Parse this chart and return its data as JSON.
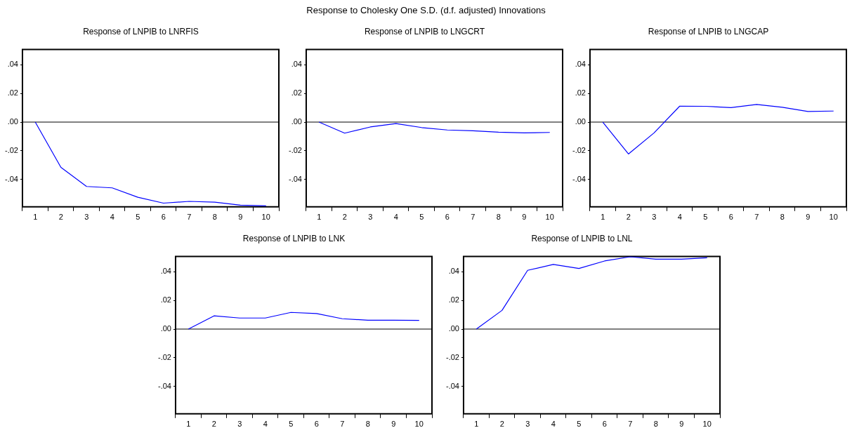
{
  "chart_data": [
    {
      "type": "line",
      "title": "Response of LNPIB to LNRFIS",
      "categories": [
        "1",
        "2",
        "3",
        "4",
        "5",
        "6",
        "7",
        "8",
        "9",
        "10"
      ],
      "values": [
        0,
        -0.0315,
        -0.0448,
        -0.0458,
        -0.0523,
        -0.0564,
        -0.0552,
        -0.0557,
        -0.0578,
        -0.0583
      ],
      "color": "#0000ff",
      "marker": "none",
      "ylim": [
        -0.059,
        0.0506
      ],
      "yticks": [
        {
          "value": -0.04,
          "label": "-.04"
        },
        {
          "value": -0.02,
          "label": "-.02"
        },
        {
          "value": 0,
          "label": ".00"
        },
        {
          "value": 0.02,
          "label": ".02"
        },
        {
          "value": 0.04,
          "label": ".04"
        }
      ],
      "ref_lines": [
        {
          "axis": "y",
          "value": 0,
          "color": "#000000"
        }
      ],
      "grid": false
    },
    {
      "type": "line",
      "title": "Response of LNPIB to LNGCRT",
      "subtitle": "Response to Cholesky One S.D. (d.f. adjusted) Innovations",
      "categories": [
        "1",
        "2",
        "3",
        "4",
        "5",
        "6",
        "7",
        "8",
        "9",
        "10"
      ],
      "values": [
        0,
        -0.0077,
        -0.0034,
        -0.001,
        -0.0038,
        -0.0055,
        -0.006,
        -0.007,
        -0.0075,
        -0.0072
      ],
      "color": "#0000ff",
      "marker": "none",
      "ylim": [
        -0.059,
        0.0506
      ],
      "yticks": [
        {
          "value": -0.04,
          "label": "-.04"
        },
        {
          "value": -0.02,
          "label": "-.02"
        },
        {
          "value": 0,
          "label": ".00"
        },
        {
          "value": 0.02,
          "label": ".02"
        },
        {
          "value": 0.04,
          "label": ".04"
        }
      ],
      "ref_lines": [
        {
          "axis": "y",
          "value": 0,
          "color": "#000000"
        }
      ],
      "grid": false
    },
    {
      "type": "line",
      "title": "Response of LNPIB to LNGCAP",
      "categories": [
        "1",
        "2",
        "3",
        "4",
        "5",
        "6",
        "7",
        "8",
        "9",
        "10"
      ],
      "values": [
        0,
        -0.0222,
        -0.0075,
        0.0111,
        0.011,
        0.0101,
        0.0123,
        0.0103,
        0.0074,
        0.0077
      ],
      "color": "#0000ff",
      "marker": "none",
      "ylim": [
        -0.059,
        0.0506
      ],
      "yticks": [
        {
          "value": -0.04,
          "label": "-.04"
        },
        {
          "value": -0.02,
          "label": "-.02"
        },
        {
          "value": 0,
          "label": ".00"
        },
        {
          "value": 0.02,
          "label": ".02"
        },
        {
          "value": 0.04,
          "label": ".04"
        }
      ],
      "ref_lines": [
        {
          "axis": "y",
          "value": 0,
          "color": "#000000"
        }
      ],
      "grid": false
    },
    {
      "type": "line",
      "title": "Response of LNPIB to LNK",
      "categories": [
        "1",
        "2",
        "3",
        "4",
        "5",
        "6",
        "7",
        "8",
        "9",
        "10"
      ],
      "values": [
        0,
        0.0092,
        0.0077,
        0.0077,
        0.0116,
        0.0108,
        0.0072,
        0.0062,
        0.0062,
        0.006
      ],
      "color": "#0000ff",
      "marker": "none",
      "ylim": [
        -0.059,
        0.0506
      ],
      "yticks": [
        {
          "value": -0.04,
          "label": "-.04"
        },
        {
          "value": -0.02,
          "label": "-.02"
        },
        {
          "value": 0,
          "label": ".00"
        },
        {
          "value": 0.02,
          "label": ".02"
        },
        {
          "value": 0.04,
          "label": ".04"
        }
      ],
      "ref_lines": [
        {
          "axis": "y",
          "value": 0,
          "color": "#000000"
        }
      ],
      "grid": false
    },
    {
      "type": "line",
      "title": "Response of LNPIB to LNL",
      "categories": [
        "1",
        "2",
        "3",
        "4",
        "5",
        "6",
        "7",
        "8",
        "9",
        "10"
      ],
      "values": [
        0,
        0.013,
        0.0409,
        0.045,
        0.0422,
        0.0474,
        0.0503,
        0.0487,
        0.0487,
        0.0496
      ],
      "color": "#0000ff",
      "marker": "none",
      "ylim": [
        -0.059,
        0.0506
      ],
      "yticks": [
        {
          "value": -0.04,
          "label": "-.04"
        },
        {
          "value": -0.02,
          "label": "-.02"
        },
        {
          "value": 0,
          "label": ".00"
        },
        {
          "value": 0.02,
          "label": ".02"
        },
        {
          "value": 0.04,
          "label": ".04"
        }
      ],
      "ref_lines": [
        {
          "axis": "y",
          "value": 0,
          "color": "#000000"
        }
      ],
      "grid": false
    }
  ]
}
